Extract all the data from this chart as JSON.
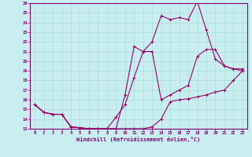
{
  "xlabel": "Windchill (Refroidissement éolien,°C)",
  "ylabel": "",
  "background_color": "#c8eef0",
  "line_color": "#990066",
  "grid_color": "#aadddd",
  "xlim": [
    -0.5,
    23.5
  ],
  "ylim": [
    13,
    26
  ],
  "yticks": [
    13,
    14,
    15,
    16,
    17,
    18,
    19,
    20,
    21,
    22,
    23,
    24,
    25,
    26
  ],
  "xticks": [
    0,
    1,
    2,
    3,
    4,
    5,
    6,
    7,
    8,
    9,
    10,
    11,
    12,
    13,
    14,
    15,
    16,
    17,
    18,
    19,
    20,
    21,
    22,
    23
  ],
  "line1_x": [
    0,
    1,
    2,
    3,
    4,
    5,
    6,
    7,
    8,
    9,
    10,
    11,
    12,
    13,
    14,
    15,
    16,
    17,
    18,
    19,
    20,
    21,
    22,
    23
  ],
  "line1_y": [
    15.5,
    14.7,
    14.5,
    14.5,
    13.2,
    13.1,
    13.0,
    13.0,
    13.0,
    13.0,
    13.0,
    13.0,
    13.0,
    13.2,
    14.0,
    15.8,
    16.0,
    16.1,
    16.3,
    16.5,
    16.8,
    17.0,
    18.0,
    19.0
  ],
  "line2_x": [
    0,
    1,
    2,
    3,
    4,
    5,
    6,
    7,
    8,
    9,
    10,
    11,
    12,
    13,
    14,
    15,
    16,
    17,
    18,
    19,
    20,
    21,
    22,
    23
  ],
  "line2_y": [
    15.5,
    14.7,
    14.5,
    14.5,
    13.2,
    13.1,
    13.0,
    13.0,
    13.0,
    14.2,
    15.5,
    18.3,
    21.0,
    21.0,
    16.0,
    16.5,
    17.0,
    17.5,
    20.5,
    21.2,
    21.2,
    19.5,
    19.2,
    19.2
  ],
  "line3_x": [
    0,
    1,
    2,
    3,
    4,
    5,
    6,
    7,
    8,
    9,
    10,
    11,
    12,
    13,
    14,
    15,
    16,
    17,
    18,
    19,
    20,
    21,
    22,
    23
  ],
  "line3_y": [
    15.5,
    14.7,
    14.5,
    14.5,
    13.2,
    13.1,
    13.0,
    13.0,
    13.0,
    13.0,
    16.5,
    21.5,
    21.0,
    22.0,
    24.7,
    24.3,
    24.5,
    24.3,
    26.2,
    23.2,
    20.2,
    19.5,
    19.2,
    19.0
  ]
}
